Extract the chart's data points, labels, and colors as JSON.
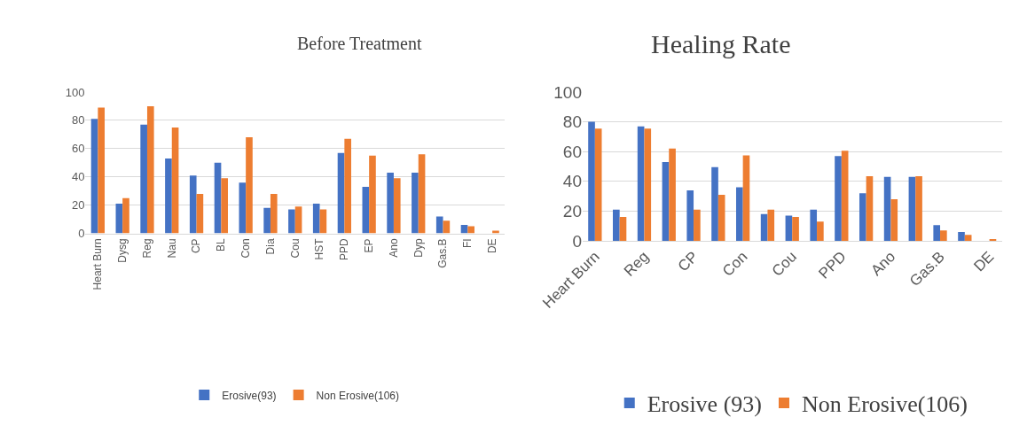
{
  "chart_data": [
    {
      "type": "bar",
      "title": "Before Treatment",
      "categories": [
        "Heart Burn",
        "Dysg",
        "Reg",
        "Nau",
        "CP",
        "BL",
        "Con",
        "Dia",
        "Cou",
        "HST",
        "PPD",
        "EP",
        "Ano",
        "Dyp",
        "Gas.B",
        "FI",
        "DE"
      ],
      "series": [
        {
          "name": "Erosive(93)",
          "color": "#4472c4",
          "values": [
            81,
            21,
            77,
            53,
            41,
            50,
            36,
            18,
            17,
            21,
            57,
            33,
            43,
            43,
            12,
            6,
            0
          ]
        },
        {
          "name": "Non Erosive(106)",
          "color": "#ed7d31",
          "values": [
            89,
            25,
            90,
            75,
            28,
            39,
            68,
            28,
            19,
            17,
            67,
            55,
            39,
            56,
            9,
            5,
            2
          ]
        }
      ],
      "ylim": [
        0,
        100
      ],
      "yticks": [
        0,
        20,
        40,
        60,
        80,
        100
      ],
      "grid": "y",
      "legend": "bottom"
    },
    {
      "type": "bar",
      "title": "Healing Rate",
      "categories": [
        "Heart Burn",
        null,
        "Reg",
        null,
        "CP",
        null,
        "Con",
        null,
        "Cou",
        null,
        "PPD",
        null,
        "Ano",
        null,
        "Gas.B",
        null,
        "DE"
      ],
      "series": [
        {
          "name": "Erosive (93)",
          "color": "#4472c4",
          "values": [
            80,
            21,
            77,
            53,
            34,
            49.5,
            36,
            18,
            17,
            21,
            57,
            32,
            43,
            43,
            10.5,
            6,
            0
          ]
        },
        {
          "name": "Non Erosive(106)",
          "color": "#ed7d31",
          "values": [
            75.5,
            16,
            75.5,
            62,
            21,
            31,
            57.5,
            21,
            16,
            13,
            60.5,
            43.5,
            28,
            43.5,
            7,
            4,
            1
          ]
        }
      ],
      "ylim": [
        0,
        100
      ],
      "yticks": [
        0,
        20,
        40,
        60,
        80,
        100
      ],
      "grid": "y",
      "legend": "bottom"
    }
  ]
}
